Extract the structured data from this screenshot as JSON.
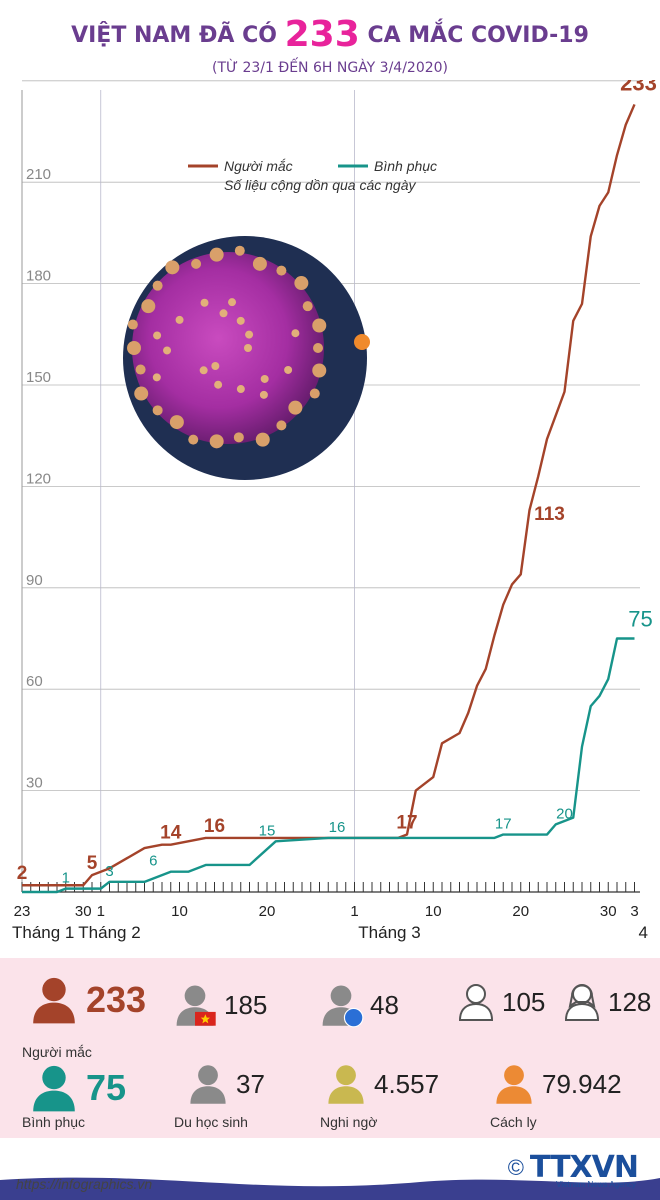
{
  "header": {
    "title_pre": "VIỆT NAM ĐÃ CÓ",
    "title_number": "233",
    "title_post": "CA MẮC COVID-19",
    "subtitle": "(TỪ 23/1 ĐẾN 6H NGÀY 3/4/2020)"
  },
  "chart_data": {
    "type": "line",
    "ylim": [
      0,
      240
    ],
    "yticks": [
      30,
      60,
      90,
      120,
      150,
      180,
      210,
      240
    ],
    "legend": {
      "note": "Số liệu cộng dồn qua các ngày",
      "placement": "top-center"
    },
    "x_tick_labels": [
      {
        "day": 0,
        "label": "23"
      },
      {
        "day": 7,
        "label": "30"
      },
      {
        "day": 9,
        "label": "1"
      },
      {
        "day": 18,
        "label": "10"
      },
      {
        "day": 28,
        "label": "20"
      },
      {
        "day": 38,
        "label": "1"
      },
      {
        "day": 47,
        "label": "10"
      },
      {
        "day": 57,
        "label": "20"
      },
      {
        "day": 67,
        "label": "30"
      },
      {
        "day": 70,
        "label": "3"
      }
    ],
    "month_labels": [
      {
        "day": 0,
        "label": "Tháng 1"
      },
      {
        "day": 10,
        "label": "Tháng 2"
      },
      {
        "day": 42,
        "label": "Tháng 3"
      },
      {
        "day": 71,
        "label": "4"
      }
    ],
    "series": [
      {
        "name": "Người mắc",
        "color": "#a4432a",
        "x": [
          0,
          7,
          8,
          10,
          12,
          14,
          16,
          17,
          19,
          21,
          22,
          23,
          25,
          43,
          44,
          45,
          47,
          48,
          50,
          51,
          52,
          53,
          54,
          55,
          56,
          57,
          58,
          59,
          60,
          61,
          62,
          63,
          64,
          65,
          66,
          67,
          68,
          69,
          70
        ],
        "y": [
          2,
          2,
          5,
          7,
          10,
          13,
          14,
          14,
          15,
          16,
          16,
          16,
          16,
          16,
          17,
          30,
          34,
          44,
          47,
          53,
          61,
          66,
          76,
          85,
          91,
          94,
          113,
          123,
          134,
          141,
          148,
          169,
          174,
          194,
          203,
          207,
          218,
          227,
          233
        ],
        "labels": [
          {
            "x": 0,
            "y": 2,
            "text": "2"
          },
          {
            "x": 8,
            "y": 5,
            "text": "5"
          },
          {
            "x": 17,
            "y": 14,
            "text": "14"
          },
          {
            "x": 22,
            "y": 16,
            "text": "16"
          },
          {
            "x": 44,
            "y": 17,
            "text": "17"
          },
          {
            "x": 58,
            "y": 113,
            "text": "113"
          },
          {
            "x": 70,
            "y": 233,
            "text": "233"
          }
        ]
      },
      {
        "name": "Bình phục",
        "color": "#17948a",
        "x": [
          0,
          4,
          5,
          9,
          10,
          12,
          14,
          15,
          17,
          19,
          20,
          21,
          26,
          29,
          35,
          38,
          43,
          54,
          55,
          60,
          61,
          62,
          63,
          64,
          65,
          66,
          67,
          68,
          69,
          70
        ],
        "y": [
          0,
          0,
          1,
          1,
          3,
          3,
          3,
          4,
          6,
          6,
          7,
          8,
          8,
          15,
          16,
          16,
          16,
          16,
          17,
          17,
          20,
          21,
          22,
          43,
          55,
          58,
          63,
          75,
          75,
          75
        ],
        "labels": [
          {
            "x": 5,
            "y": 1,
            "text": "1"
          },
          {
            "x": 10,
            "y": 3,
            "text": "3"
          },
          {
            "x": 15,
            "y": 6,
            "text": "6"
          },
          {
            "x": 28,
            "y": 15,
            "text": "15"
          },
          {
            "x": 36,
            "y": 16,
            "text": "16"
          },
          {
            "x": 55,
            "y": 17,
            "text": "17"
          },
          {
            "x": 62,
            "y": 20,
            "text": "20"
          },
          {
            "x": 70,
            "y": 75,
            "text": "75"
          }
        ]
      }
    ]
  },
  "stats": [
    {
      "id": "infected",
      "value": "233",
      "label": "Người mắc",
      "color": "#a4432a",
      "icon": "person-icon"
    },
    {
      "id": "domestic",
      "value": "185",
      "label": "",
      "color": "#8a8a8a",
      "icon": "person-vietnam-flag-icon"
    },
    {
      "id": "imported",
      "value": "48",
      "label": "",
      "color": "#8a8a8a",
      "icon": "person-globe-icon"
    },
    {
      "id": "male",
      "value": "105",
      "label": "",
      "color": "#8a8a8a",
      "icon": "man-icon"
    },
    {
      "id": "female",
      "value": "128",
      "label": "",
      "color": "#8a8a8a",
      "icon": "woman-icon"
    },
    {
      "id": "recovered",
      "value": "75",
      "label": "Bình phục",
      "color": "#17948a",
      "icon": "person-icon"
    },
    {
      "id": "students",
      "value": "37",
      "label": "Du học sinh",
      "color": "#8a8a8a",
      "icon": "person-icon"
    },
    {
      "id": "suspected",
      "value": "4.557",
      "label": "Nghi ngờ",
      "color": "#c9b850",
      "icon": "person-icon"
    },
    {
      "id": "quarantine",
      "value": "79.942",
      "label": "Cách ly",
      "color": "#ec8a34",
      "icon": "person-icon"
    }
  ],
  "footer": {
    "url": "https://infographics.vn",
    "copyright": "©",
    "brand": "TTXVN",
    "tagline": "Vietnam News Agency"
  }
}
